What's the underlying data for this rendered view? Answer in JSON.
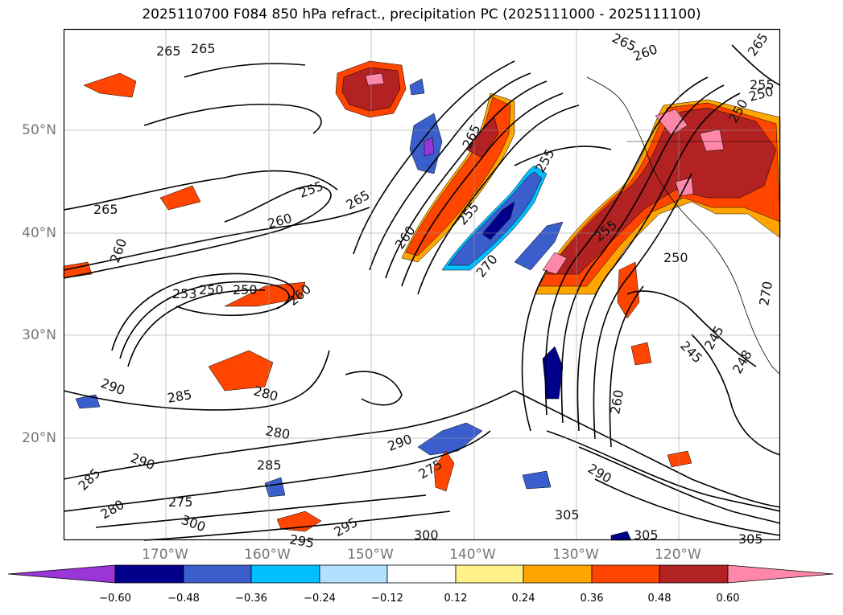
{
  "title": "2025110700 F084 850 hPa refract., precipitation PC (2025111000 - 2025111100)",
  "lat_labels": [
    "50°N",
    "40°N",
    "30°N",
    "20°N"
  ],
  "lon_labels": [
    "170°W",
    "160°W",
    "150°W",
    "140°W",
    "130°W",
    "120°W"
  ],
  "contour_labels": [
    "265",
    "265",
    "265",
    "260",
    "255",
    "250",
    "265",
    "255",
    "265",
    "265",
    "260",
    "255",
    "260",
    "250",
    "255",
    "260",
    "265",
    "260",
    "250",
    "253",
    "250",
    "270",
    "255",
    "260",
    "245",
    "250",
    "290",
    "285",
    "280",
    "280",
    "290",
    "290",
    "285",
    "275",
    "285",
    "280",
    "275",
    "300",
    "295",
    "295",
    "300",
    "305",
    "305",
    "305",
    "290",
    "245",
    "248",
    "270"
  ],
  "colorbar": {
    "ticks": [
      "−0.60",
      "−0.48",
      "−0.36",
      "−0.24",
      "−0.12",
      "0.12",
      "0.24",
      "0.36",
      "0.48",
      "0.60"
    ],
    "colors": [
      "#9a36d8",
      "#00008b",
      "#3a5fcd",
      "#00bfff",
      "#b0e2ff",
      "#ffffff",
      "#fff08a",
      "#ffa500",
      "#ff4500",
      "#b22222",
      "#ff88aa"
    ]
  },
  "map_colors": {
    "red_dark": "#b22222",
    "red": "#ff4500",
    "orange": "#ffa500",
    "yellow": "#fff08a",
    "pink": "#ff88aa",
    "blue_dark": "#00008b",
    "blue": "#3a5fcd",
    "blue_light": "#00bfff",
    "purple": "#9a36d8"
  }
}
